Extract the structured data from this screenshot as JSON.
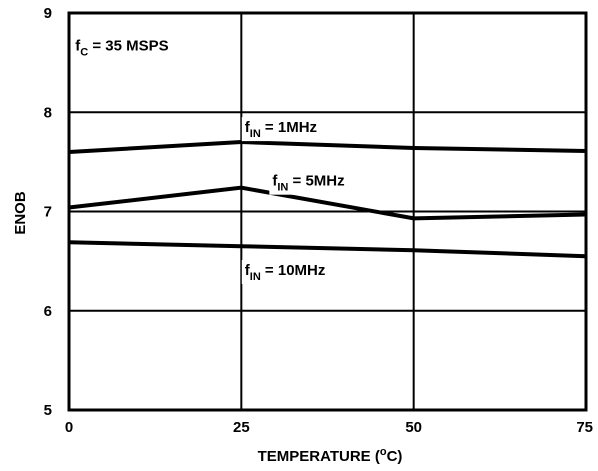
{
  "chart_data": {
    "type": "line",
    "title": "",
    "xlabel_prefix": "TEMPERATURE (",
    "xlabel_sup": "o",
    "xlabel_suffix": "C)",
    "ylabel": "ENOB",
    "x": [
      0,
      25,
      50,
      75
    ],
    "xlim": [
      0,
      75
    ],
    "ylim": [
      5,
      9
    ],
    "x_ticks": [
      "0",
      "25",
      "50",
      "75"
    ],
    "y_ticks": [
      "5",
      "6",
      "7",
      "8",
      "9"
    ],
    "grid": true,
    "series": [
      {
        "name": "1MHz",
        "values": [
          7.6,
          7.7,
          7.64,
          7.61
        ]
      },
      {
        "name": "5MHz",
        "values": [
          7.04,
          7.24,
          6.93,
          6.97
        ]
      },
      {
        "name": "10MHz",
        "values": [
          6.69,
          6.65,
          6.61,
          6.55
        ]
      }
    ],
    "annotations": [
      {
        "base": "f",
        "sub": "C",
        "text": " = 35 MSPS",
        "x": 0.9,
        "y": 8.62
      },
      {
        "base": "f",
        "sub": "IN",
        "text": " = 1MHz",
        "x": 25.5,
        "y": 7.8
      },
      {
        "base": "f",
        "sub": "IN",
        "text": " = 5MHz",
        "x": 29.5,
        "y": 7.26
      },
      {
        "base": "f",
        "sub": "IN",
        "text": " = 10MHz",
        "x": 25.5,
        "y": 6.36
      }
    ],
    "line_color": "#000000"
  }
}
